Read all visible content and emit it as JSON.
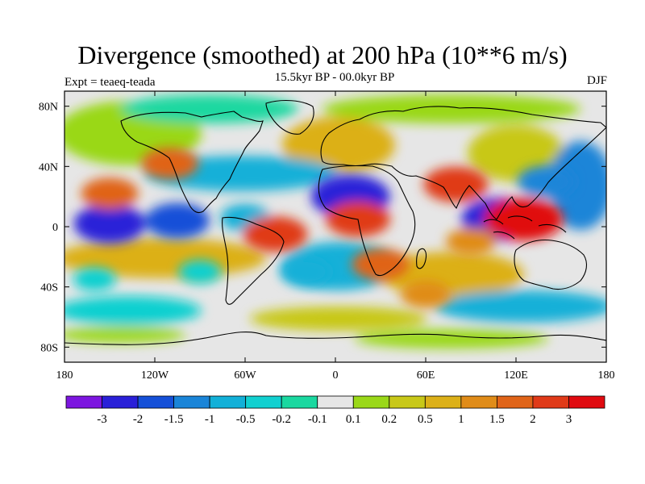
{
  "header": {
    "title": "Divergence (smoothed) at 200 hPa (10**6 m/s)",
    "subtitle": "15.5kyr BP - 00.0kyr BP",
    "expt": "Expt = teaeq-teada",
    "season": "DJF"
  },
  "axes": {
    "lat_ticks": [
      "80N",
      "40N",
      "0",
      "40S",
      "80S"
    ],
    "lon_ticks": [
      "180",
      "120W",
      "60W",
      "0",
      "60E",
      "120E",
      "180"
    ]
  },
  "colorbar": {
    "labels": [
      "-3",
      "-2",
      "-1.5",
      "-1",
      "-0.5",
      "-0.2",
      "-0.1",
      "0.1",
      "0.2",
      "0.5",
      "1",
      "1.5",
      "2",
      "3"
    ],
    "colors": [
      "#7d16e0",
      "#2a20d8",
      "#1550d8",
      "#1a85d8",
      "#12b0d8",
      "#11d0d0",
      "#1ad8a0",
      "#e6e6e6",
      "#9ad818",
      "#c8c818",
      "#dcb018",
      "#e08c18",
      "#e06418",
      "#e03a18",
      "#e00a10"
    ]
  },
  "chart_data": {
    "type": "heatmap",
    "title": "Divergence (smoothed) at 200 hPa (10**6 m/s)",
    "variable": "200 hPa divergence difference, 15.5kyr BP minus 00.0kyr BP, DJF",
    "xlim": [
      -180,
      180
    ],
    "ylim": [
      -90,
      90
    ],
    "levels": [
      -3,
      -2,
      -1.5,
      -1,
      -0.5,
      -0.2,
      -0.1,
      0.1,
      0.2,
      0.5,
      1,
      1.5,
      2,
      3
    ],
    "features": [
      {
        "lon": -150,
        "lat": 2,
        "value": -2.5
      },
      {
        "lon": -105,
        "lat": 4,
        "value": -2.0
      },
      {
        "lon": -60,
        "lat": 6,
        "value": -1.0
      },
      {
        "lon": 10,
        "lat": 20,
        "value": -3.0
      },
      {
        "lon": 110,
        "lat": 5,
        "value": -3.0
      },
      {
        "lon": 125,
        "lat": 5,
        "value": 3.0
      },
      {
        "lon": 80,
        "lat": 28,
        "value": 2.0
      },
      {
        "lon": -150,
        "lat": 22,
        "value": 1.5
      },
      {
        "lon": -110,
        "lat": 42,
        "value": 1.5
      },
      {
        "lon": 15,
        "lat": 5,
        "value": 2.0
      },
      {
        "lon": 30,
        "lat": -25,
        "value": 1.5
      },
      {
        "lon": -40,
        "lat": -5,
        "value": 2.0
      },
      {
        "lon": 140,
        "lat": 30,
        "value": -1.5
      },
      {
        "lon": -20,
        "lat": -30,
        "value": -1.0
      },
      {
        "lon": -90,
        "lat": -30,
        "value": -0.5
      },
      {
        "lon": 60,
        "lat": -45,
        "value": 1.0
      },
      {
        "lon": 90,
        "lat": -10,
        "value": 1.0
      },
      {
        "lon": -160,
        "lat": -35,
        "value": -0.5
      }
    ]
  }
}
